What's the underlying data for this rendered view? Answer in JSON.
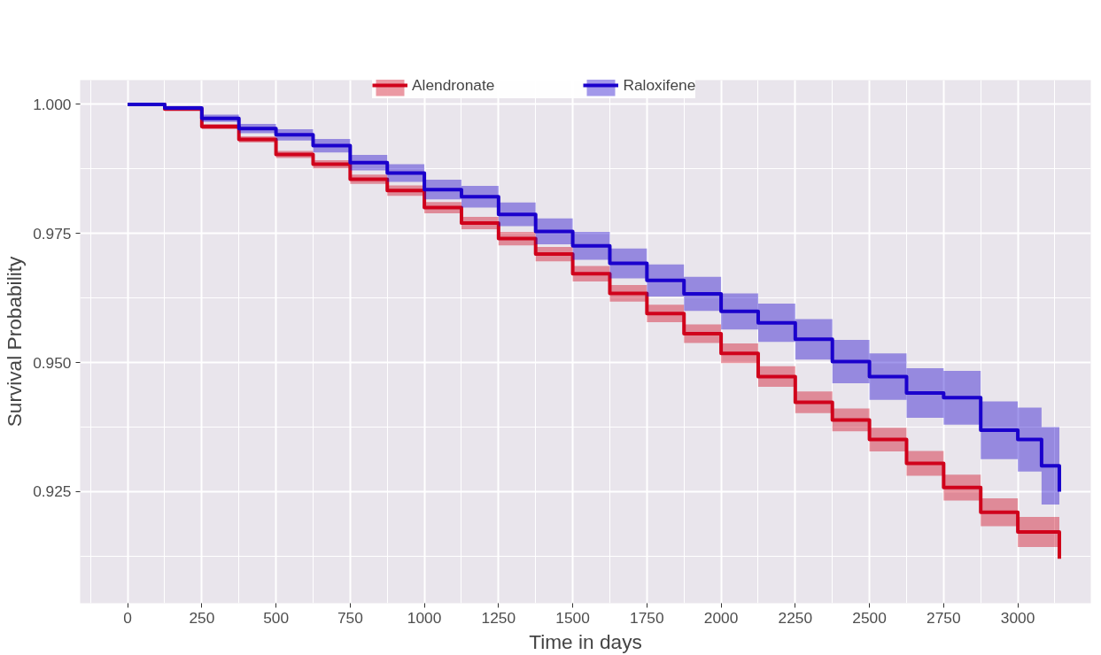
{
  "chart_data": {
    "type": "step",
    "xlabel": "Time in days",
    "ylabel": "Survival Probability",
    "xlim": [
      -160,
      3246
    ],
    "ylim": [
      0.9034,
      1.0047
    ],
    "xticks": [
      0,
      250,
      500,
      750,
      1000,
      1250,
      1500,
      1750,
      2000,
      2250,
      2500,
      2750,
      3000
    ],
    "yticks": [
      {
        "value": 0.925,
        "label": "0.925"
      },
      {
        "value": 0.95,
        "label": "0.950"
      },
      {
        "value": 0.975,
        "label": "0.975"
      },
      {
        "value": 1.0,
        "label": "1.000"
      }
    ],
    "grid": true,
    "legend": "top",
    "series": [
      {
        "name": "Alendronate",
        "color": "#d0021b",
        "x": [
          0,
          125,
          250,
          375,
          500,
          625,
          750,
          875,
          1000,
          1125,
          1250,
          1375,
          1500,
          1625,
          1750,
          1875,
          2000,
          2125,
          2250,
          2375,
          2500,
          2625,
          2750,
          2875,
          3000,
          3140
        ],
        "values": [
          1.0,
          0.9991,
          0.9957,
          0.9932,
          0.9903,
          0.9884,
          0.9855,
          0.9833,
          0.98,
          0.977,
          0.974,
          0.971,
          0.9672,
          0.9634,
          0.9595,
          0.9556,
          0.9518,
          0.9473,
          0.9423,
          0.9389,
          0.9351,
          0.9305,
          0.9258,
          0.921,
          0.9172,
          0.912
        ],
        "lower": [
          1.0,
          0.9988,
          0.9952,
          0.9926,
          0.9896,
          0.9876,
          0.9846,
          0.9823,
          0.9789,
          0.9758,
          0.9727,
          0.9696,
          0.9657,
          0.9618,
          0.9578,
          0.9538,
          0.9499,
          0.9453,
          0.9402,
          0.9367,
          0.9328,
          0.9281,
          0.9233,
          0.9183,
          0.9143,
          0.9085
        ],
        "upper": [
          1.0,
          0.9994,
          0.9962,
          0.9938,
          0.991,
          0.9892,
          0.9864,
          0.9843,
          0.9811,
          0.9782,
          0.9753,
          0.9724,
          0.9687,
          0.965,
          0.9612,
          0.9574,
          0.9537,
          0.9493,
          0.9444,
          0.9411,
          0.9374,
          0.9329,
          0.9283,
          0.9237,
          0.9201,
          0.9155
        ]
      },
      {
        "name": "Raloxifene",
        "color": "#1a00cc",
        "x": [
          0,
          125,
          250,
          375,
          500,
          625,
          750,
          875,
          1000,
          1125,
          1250,
          1375,
          1500,
          1625,
          1750,
          1875,
          2000,
          2125,
          2250,
          2375,
          2500,
          2625,
          2750,
          2875,
          3000,
          3080,
          3140
        ],
        "values": [
          1.0,
          0.9993,
          0.9973,
          0.9953,
          0.9941,
          0.992,
          0.9887,
          0.9867,
          0.9835,
          0.9821,
          0.9787,
          0.9754,
          0.9726,
          0.9692,
          0.9659,
          0.9633,
          0.9599,
          0.9577,
          0.9545,
          0.9502,
          0.9473,
          0.9441,
          0.9432,
          0.9369,
          0.9351,
          0.93,
          0.925
        ],
        "lower": [
          1.0,
          0.9989,
          0.9966,
          0.9944,
          0.993,
          0.9907,
          0.9872,
          0.985,
          0.9816,
          0.98,
          0.9764,
          0.9729,
          0.9699,
          0.9663,
          0.9628,
          0.96,
          0.9564,
          0.954,
          0.9506,
          0.946,
          0.9428,
          0.9393,
          0.938,
          0.9313,
          0.9289,
          0.9225,
          0.915
        ],
        "upper": [
          1.0,
          0.9997,
          0.998,
          0.9962,
          0.9952,
          0.9933,
          0.9902,
          0.9884,
          0.9854,
          0.9842,
          0.981,
          0.9779,
          0.9753,
          0.9721,
          0.969,
          0.9666,
          0.9634,
          0.9614,
          0.9584,
          0.9544,
          0.9518,
          0.9489,
          0.9484,
          0.9425,
          0.9413,
          0.9375,
          0.935
        ]
      }
    ]
  }
}
